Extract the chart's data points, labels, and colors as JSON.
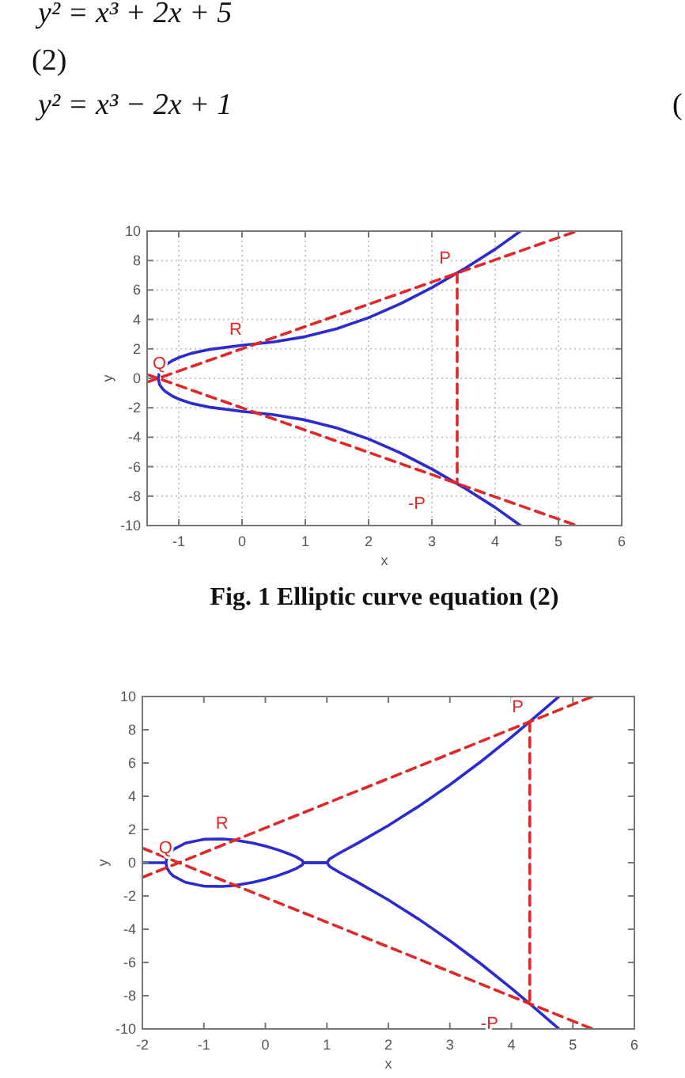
{
  "chart_data": [
    {
      "type": "line",
      "title": "Fig. 1 Elliptic curve equation (2)",
      "xlabel": "x",
      "ylabel": "y",
      "xlim": [
        -1.5,
        6
      ],
      "ylim": [
        -10,
        10
      ],
      "xticks": [
        -1,
        0,
        1,
        2,
        3,
        4,
        5,
        6
      ],
      "yticks": [
        -10,
        -8,
        -6,
        -4,
        -2,
        0,
        2,
        4,
        6,
        8,
        10
      ],
      "grid": true,
      "series": [
        {
          "color": "#2b2bd0",
          "x": [
            -1.328,
            -1.3,
            -1.25,
            -1.2,
            -1.1,
            -1,
            -0.8,
            -0.5,
            0,
            0.5,
            1,
            1.5,
            2,
            2.5,
            3,
            3.5,
            4,
            4.4
          ],
          "values": [
            0,
            0.45,
            0.74,
            0.93,
            1.21,
            1.41,
            1.7,
            1.97,
            2.24,
            2.47,
            2.83,
            3.37,
            4.12,
            5.06,
            6.16,
            7.41,
            8.77,
            10
          ]
        },
        {
          "color": "#2b2bd0",
          "x": [
            -1.328,
            -1.3,
            -1.25,
            -1.2,
            -1.1,
            -1,
            -0.8,
            -0.5,
            0,
            0.5,
            1,
            1.5,
            2,
            2.5,
            3,
            3.5,
            4,
            4.4
          ],
          "values": [
            0,
            -0.45,
            -0.74,
            -0.93,
            -1.21,
            -1.41,
            -1.7,
            -1.97,
            -2.24,
            -2.47,
            -2.83,
            -3.37,
            -4.12,
            -5.06,
            -6.16,
            -7.41,
            -8.77,
            -10
          ]
        },
        {
          "color": "#e02828",
          "line_style": "dashed",
          "x": [
            -1.5,
            5.29
          ],
          "values": [
            -0.26,
            10
          ]
        },
        {
          "color": "#e02828",
          "line_style": "dashed",
          "x": [
            -1.5,
            5.29
          ],
          "values": [
            0.26,
            -10
          ]
        },
        {
          "color": "#e02828",
          "line_style": "dashed",
          "x": [
            3.4,
            3.4
          ],
          "values": [
            7.15,
            -7.15
          ]
        }
      ],
      "annotations": [
        "y² = x³ + 2x + 5",
        "(2)",
        "y² = x³ − 2x + 1",
        "(",
        {
          "text": "P",
          "x": 3.4,
          "y": 7.15
        },
        {
          "text": "-P",
          "x": 3.4,
          "y": -7.15
        },
        {
          "text": "R",
          "x": 0.1,
          "y": 2.3
        },
        {
          "text": "Q",
          "x": -1.33,
          "y": 0
        }
      ]
    },
    {
      "type": "line",
      "xlabel": "x",
      "ylabel": "y",
      "xlim": [
        -2,
        6
      ],
      "ylim": [
        -10,
        10
      ],
      "xticks": [
        -2,
        -1,
        0,
        1,
        2,
        3,
        4,
        5,
        6
      ],
      "yticks": [
        -10,
        -8,
        -6,
        -4,
        -2,
        0,
        2,
        4,
        6,
        8,
        10
      ],
      "series": [
        {
          "color": "#2b2bd0",
          "x": [
            -2,
            -1.618,
            -1.6,
            -1.55,
            -1.5,
            -1.3,
            -1,
            -0.7,
            -0.5,
            -0.2,
            0,
            0.2,
            0.4,
            0.5,
            0.6,
            0.618,
            1,
            1.05,
            1.2,
            1.5,
            2,
            2.5,
            3,
            3.5,
            4,
            4.5,
            4.775
          ],
          "values": [
            0,
            0,
            0.32,
            0.61,
            0.79,
            1.18,
            1.41,
            1.43,
            1.37,
            1.18,
            1,
            0.78,
            0.51,
            0.35,
            0.13,
            0,
            0,
            0.24,
            0.57,
            1.17,
            2.24,
            3.41,
            4.69,
            6.07,
            7.55,
            9.12,
            10
          ]
        },
        {
          "color": "#2b2bd0",
          "x": [
            -1.618,
            -1.6,
            -1.55,
            -1.5,
            -1.3,
            -1,
            -0.7,
            -0.5,
            -0.2,
            0,
            0.2,
            0.4,
            0.5,
            0.6,
            0.618,
            1,
            1.05,
            1.2,
            1.5,
            2,
            2.5,
            3,
            3.5,
            4,
            4.5,
            4.775
          ],
          "values": [
            0,
            -0.32,
            -0.61,
            -0.79,
            -1.18,
            -1.41,
            -1.43,
            -1.37,
            -1.18,
            -1,
            -0.78,
            -0.51,
            -0.35,
            -0.13,
            0,
            0,
            -0.24,
            -0.57,
            -1.17,
            -2.24,
            -3.41,
            -4.69,
            -6.07,
            -7.55,
            -9.12,
            -10
          ]
        },
        {
          "color": "#e02828",
          "line_style": "dashed",
          "x": [
            -2,
            5.32
          ],
          "values": [
            -0.88,
            10
          ]
        },
        {
          "color": "#e02828",
          "line_style": "dashed",
          "x": [
            -2,
            5.32
          ],
          "values": [
            0.88,
            -10
          ]
        },
        {
          "color": "#e02828",
          "line_style": "dashed",
          "x": [
            4.3,
            4.3
          ],
          "values": [
            8.48,
            -8.48
          ]
        }
      ],
      "annotations": [
        {
          "text": "P",
          "x": 4.3,
          "y": 8.48
        },
        {
          "text": "-P",
          "x": 4.3,
          "y": -8.48
        },
        {
          "text": "R",
          "x": -0.5,
          "y": 1.5
        },
        {
          "text": "Q",
          "x": -1.41,
          "y": 0
        }
      ]
    }
  ]
}
